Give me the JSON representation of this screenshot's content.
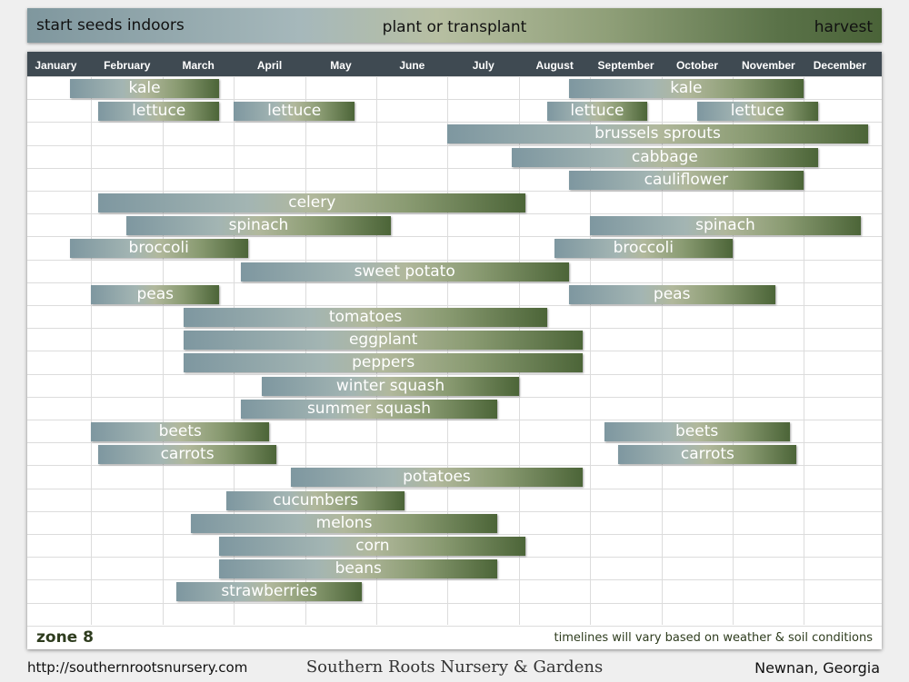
{
  "legend": {
    "start": "start seeds indoors",
    "plant": "plant or transplant",
    "harvest": "harvest"
  },
  "months": [
    "January",
    "February",
    "March",
    "April",
    "May",
    "June",
    "July",
    "August",
    "September",
    "October",
    "November",
    "December"
  ],
  "footer": {
    "zone": "zone 8",
    "note": "timelines will vary based on weather & soil conditions",
    "url": "http://southernrootsnursery.com",
    "name": "Southern Roots Nursery & Gardens",
    "location": "Newnan, Georgia"
  },
  "colors": {
    "start": "#7e97a0",
    "plant": "#b1b89c",
    "harvest": "#4c6538",
    "header": "#3f4a52"
  },
  "chart_data": {
    "type": "gantt",
    "x_unit": "month (1 = start of January, 13 = end of December)",
    "rows": [
      {
        "bars": [
          {
            "label": "kale",
            "start": 1.8,
            "end": 3.9
          },
          {
            "label": "kale",
            "start": 8.8,
            "end": 12.1
          }
        ]
      },
      {
        "bars": [
          {
            "label": "lettuce",
            "start": 2.2,
            "end": 3.9
          },
          {
            "label": "lettuce",
            "start": 4.1,
            "end": 5.8
          },
          {
            "label": "lettuce",
            "start": 8.5,
            "end": 9.9
          },
          {
            "label": "lettuce",
            "start": 10.6,
            "end": 12.3
          }
        ]
      },
      {
        "bars": [
          {
            "label": "brussels sprouts",
            "start": 7.1,
            "end": 13.0
          }
        ]
      },
      {
        "bars": [
          {
            "label": "cabbage",
            "start": 8.0,
            "end": 12.3
          }
        ]
      },
      {
        "bars": [
          {
            "label": "cauliflower",
            "start": 8.8,
            "end": 12.1
          }
        ]
      },
      {
        "bars": [
          {
            "label": "celery",
            "start": 2.2,
            "end": 8.2
          }
        ]
      },
      {
        "bars": [
          {
            "label": "spinach",
            "start": 2.6,
            "end": 6.3
          },
          {
            "label": "spinach",
            "start": 9.1,
            "end": 12.9
          }
        ]
      },
      {
        "bars": [
          {
            "label": "broccoli",
            "start": 1.8,
            "end": 4.3
          },
          {
            "label": "broccoli",
            "start": 8.6,
            "end": 11.1
          }
        ]
      },
      {
        "bars": [
          {
            "label": "sweet potato",
            "start": 4.2,
            "end": 8.8
          }
        ]
      },
      {
        "bars": [
          {
            "label": "peas",
            "start": 2.1,
            "end": 3.9
          },
          {
            "label": "peas",
            "start": 8.8,
            "end": 11.7
          }
        ]
      },
      {
        "bars": [
          {
            "label": "tomatoes",
            "start": 3.4,
            "end": 8.5
          }
        ]
      },
      {
        "bars": [
          {
            "label": "eggplant",
            "start": 3.4,
            "end": 9.0
          }
        ]
      },
      {
        "bars": [
          {
            "label": "peppers",
            "start": 3.4,
            "end": 9.0
          }
        ]
      },
      {
        "bars": [
          {
            "label": "winter squash",
            "start": 4.5,
            "end": 8.1
          }
        ]
      },
      {
        "bars": [
          {
            "label": "summer squash",
            "start": 4.2,
            "end": 7.8
          }
        ]
      },
      {
        "bars": [
          {
            "label": "beets",
            "start": 2.1,
            "end": 4.6
          },
          {
            "label": "beets",
            "start": 9.3,
            "end": 11.9
          }
        ]
      },
      {
        "bars": [
          {
            "label": "carrots",
            "start": 2.2,
            "end": 4.7
          },
          {
            "label": "carrots",
            "start": 9.5,
            "end": 12.0
          }
        ]
      },
      {
        "bars": [
          {
            "label": "potatoes",
            "start": 4.9,
            "end": 9.0
          }
        ]
      },
      {
        "bars": [
          {
            "label": "cucumbers",
            "start": 4.0,
            "end": 6.5
          }
        ]
      },
      {
        "bars": [
          {
            "label": "melons",
            "start": 3.5,
            "end": 7.8
          }
        ]
      },
      {
        "bars": [
          {
            "label": "corn",
            "start": 3.9,
            "end": 8.2
          }
        ]
      },
      {
        "bars": [
          {
            "label": "beans",
            "start": 3.9,
            "end": 7.8
          }
        ]
      },
      {
        "bars": [
          {
            "label": "strawberries",
            "start": 3.3,
            "end": 5.9
          }
        ]
      }
    ]
  }
}
